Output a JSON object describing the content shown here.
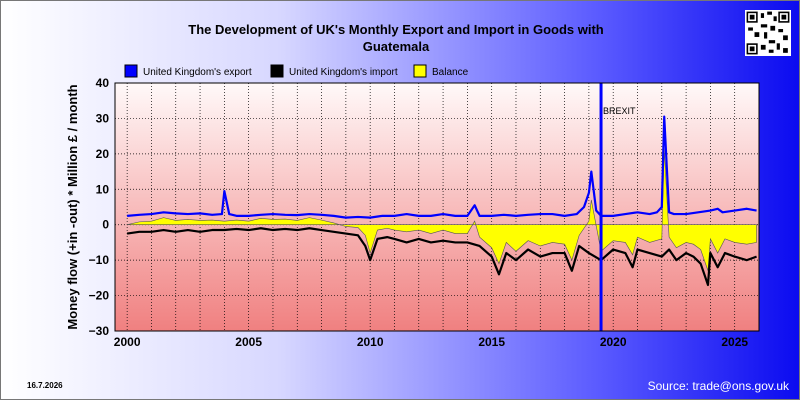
{
  "title": "The Development of UK's Monthly Export and Import in Goods with Guatemala",
  "date_label": "16.7.2026",
  "source_label": "Source: trade@ons.gov.uk",
  "qr_icon": "qr-code-icon",
  "colors": {
    "export": "#0000ff",
    "import": "#000000",
    "balance": "#ffff00",
    "brexit": "#0000ff"
  },
  "chart_data": {
    "type": "line",
    "title": "The Development of UK's Monthly Export and Import in Goods with Guatemala",
    "xlabel": "",
    "ylabel": "Money flow (+in -out) * Million £ / month",
    "xlim": [
      1999.5,
      2026.0
    ],
    "ylim": [
      -30,
      40
    ],
    "x_ticks": [
      2000,
      2005,
      2010,
      2015,
      2020,
      2025
    ],
    "x_tick_labels": [
      "2000",
      "2005",
      "2010",
      "2015",
      "2020",
      "2025"
    ],
    "y_ticks": [
      -30,
      -20,
      -10,
      0,
      10,
      20,
      30,
      40
    ],
    "y_tick_labels": [
      "−30",
      "−20",
      "−10",
      "0",
      "10",
      "20",
      "30",
      "40"
    ],
    "grid": true,
    "legend": "top-left",
    "annotations": [
      {
        "label": "BREXIT",
        "x": 2019.5
      }
    ],
    "series": [
      {
        "name": "United Kingdom's export",
        "x": [
          2000.0,
          2000.5,
          2001.0,
          2001.5,
          2002.0,
          2002.5,
          2003.0,
          2003.5,
          2003.9,
          2004.0,
          2004.2,
          2004.5,
          2005.0,
          2005.5,
          2006.0,
          2006.5,
          2007.0,
          2007.5,
          2008.0,
          2008.5,
          2009.0,
          2009.5,
          2010.0,
          2010.5,
          2011.0,
          2011.5,
          2012.0,
          2012.5,
          2013.0,
          2013.5,
          2014.0,
          2014.3,
          2014.5,
          2015.0,
          2015.5,
          2016.0,
          2016.5,
          2017.0,
          2017.5,
          2018.0,
          2018.5,
          2018.8,
          2019.0,
          2019.1,
          2019.3,
          2019.5,
          2020.0,
          2020.5,
          2021.0,
          2021.5,
          2021.8,
          2022.0,
          2022.1,
          2022.3,
          2022.5,
          2023.0,
          2023.5,
          2024.0,
          2024.3,
          2024.5,
          2025.0,
          2025.5,
          2025.9
        ],
        "values": [
          2.5,
          2.8,
          3.0,
          3.5,
          3.2,
          3.0,
          3.2,
          2.8,
          3.0,
          9.5,
          3.0,
          2.5,
          2.5,
          2.8,
          3.0,
          2.8,
          2.7,
          3.0,
          2.8,
          2.5,
          2.0,
          2.2,
          2.0,
          2.5,
          2.5,
          3.0,
          2.5,
          2.5,
          3.0,
          2.5,
          2.5,
          5.5,
          2.5,
          2.5,
          2.8,
          2.5,
          2.8,
          3.0,
          3.0,
          2.5,
          3.0,
          5.0,
          9.0,
          15.0,
          4.0,
          2.5,
          2.5,
          3.0,
          3.5,
          3.0,
          3.5,
          5.0,
          30.5,
          3.5,
          3.0,
          3.0,
          3.5,
          4.0,
          4.5,
          3.5,
          4.0,
          4.5,
          4.0
        ]
      },
      {
        "name": "United Kingdom's import",
        "x": [
          2000.0,
          2000.5,
          2001.0,
          2001.5,
          2002.0,
          2002.5,
          2003.0,
          2003.5,
          2004.0,
          2004.5,
          2005.0,
          2005.5,
          2006.0,
          2006.5,
          2007.0,
          2007.5,
          2008.0,
          2008.5,
          2009.0,
          2009.5,
          2009.8,
          2010.0,
          2010.3,
          2010.7,
          2011.0,
          2011.5,
          2012.0,
          2012.5,
          2013.0,
          2013.5,
          2014.0,
          2014.5,
          2015.0,
          2015.3,
          2015.6,
          2016.0,
          2016.5,
          2017.0,
          2017.5,
          2018.0,
          2018.3,
          2018.6,
          2019.0,
          2019.5,
          2020.0,
          2020.5,
          2020.8,
          2021.0,
          2021.5,
          2022.0,
          2022.3,
          2022.6,
          2023.0,
          2023.3,
          2023.6,
          2023.9,
          2024.0,
          2024.3,
          2024.6,
          2025.0,
          2025.5,
          2025.9
        ],
        "values": [
          -2.5,
          -2.0,
          -2.0,
          -1.5,
          -2.0,
          -1.5,
          -2.0,
          -1.5,
          -1.5,
          -1.2,
          -1.5,
          -1.0,
          -1.5,
          -1.2,
          -1.5,
          -1.0,
          -1.5,
          -2.0,
          -2.5,
          -3.0,
          -6.0,
          -10.0,
          -4.0,
          -3.5,
          -4.0,
          -5.0,
          -4.0,
          -5.0,
          -4.5,
          -5.0,
          -5.0,
          -6.0,
          -9.0,
          -14.0,
          -8.0,
          -10.0,
          -7.0,
          -9.0,
          -8.0,
          -8.0,
          -13.0,
          -6.0,
          -8.0,
          -10.0,
          -7.0,
          -8.0,
          -12.0,
          -7.0,
          -8.0,
          -9.0,
          -7.0,
          -10.0,
          -8.0,
          -9.0,
          -11.0,
          -17.0,
          -8.0,
          -12.0,
          -8.0,
          -9.0,
          -10.0,
          -9.0
        ]
      },
      {
        "name": "Balance",
        "x": [
          2000.0,
          2000.5,
          2001.0,
          2001.5,
          2002.0,
          2002.5,
          2003.0,
          2003.5,
          2004.0,
          2004.5,
          2005.0,
          2005.5,
          2006.0,
          2006.5,
          2007.0,
          2007.5,
          2008.0,
          2008.5,
          2009.0,
          2009.5,
          2009.8,
          2010.0,
          2010.3,
          2010.7,
          2011.0,
          2011.5,
          2012.0,
          2012.5,
          2013.0,
          2013.5,
          2014.0,
          2014.3,
          2014.5,
          2015.0,
          2015.3,
          2015.6,
          2016.0,
          2016.5,
          2017.0,
          2017.5,
          2018.0,
          2018.3,
          2018.6,
          2019.0,
          2019.1,
          2019.5,
          2020.0,
          2020.5,
          2020.8,
          2021.0,
          2021.5,
          2022.0,
          2022.1,
          2022.3,
          2022.6,
          2023.0,
          2023.3,
          2023.6,
          2023.9,
          2024.0,
          2024.3,
          2024.6,
          2025.0,
          2025.5,
          2025.9
        ],
        "values": [
          0.0,
          0.8,
          1.0,
          2.0,
          1.2,
          1.5,
          1.2,
          1.3,
          1.0,
          1.3,
          1.0,
          1.8,
          1.5,
          1.6,
          1.2,
          2.0,
          1.3,
          0.5,
          -0.5,
          -0.8,
          -3.0,
          -8.0,
          -1.5,
          -1.0,
          -1.5,
          -2.0,
          -1.5,
          -2.5,
          -1.5,
          -2.5,
          -2.5,
          1.0,
          -3.5,
          -6.5,
          -11.0,
          -5.0,
          -7.5,
          -4.5,
          -6.0,
          -5.0,
          -5.5,
          -10.0,
          -3.0,
          1.0,
          7.0,
          -7.5,
          -4.5,
          -5.0,
          -8.5,
          -3.5,
          -5.0,
          -4.0,
          21.5,
          -3.5,
          -6.5,
          -5.0,
          -5.5,
          -7.0,
          -13.0,
          -4.0,
          -8.0,
          -4.0,
          -5.0,
          -5.5,
          -5.0
        ]
      }
    ]
  }
}
